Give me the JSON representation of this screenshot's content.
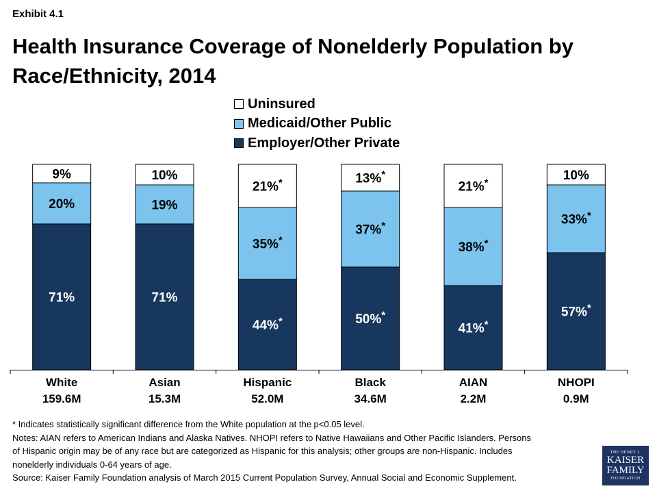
{
  "header": {
    "exhibit": "Exhibit 4.1",
    "title": "Health Insurance Coverage of Nonelderly Population by Race/Ethnicity, 2014"
  },
  "chart_data": {
    "type": "bar",
    "stacked": true,
    "title": "Health Insurance Coverage of Nonelderly Population by Race/Ethnicity, 2014",
    "categories": [
      "White",
      "Asian",
      "Hispanic",
      "Black",
      "AIAN",
      "NHOPI"
    ],
    "category_sublabels": [
      "159.6M",
      "15.3M",
      "52.0M",
      "34.6M",
      "2.2M",
      "0.9M"
    ],
    "ylim": [
      0,
      100
    ],
    "legend_position": "top",
    "series": [
      {
        "name": "Employer/Other Private",
        "color": "#17375e",
        "text_color": "#ffffff",
        "values": [
          71,
          71,
          44,
          50,
          41,
          57
        ],
        "labels": [
          "71%",
          "71%",
          "44%",
          "50%",
          "41%",
          "57%"
        ],
        "significant": [
          false,
          false,
          true,
          true,
          true,
          true
        ]
      },
      {
        "name": "Medicaid/Other Public",
        "color": "#7cc4ee",
        "text_color": "#000000",
        "values": [
          20,
          19,
          35,
          37,
          38,
          33
        ],
        "labels": [
          "20%",
          "19%",
          "35%",
          "37%",
          "38%",
          "33%"
        ],
        "significant": [
          false,
          false,
          true,
          true,
          true,
          true
        ]
      },
      {
        "name": "Uninsured",
        "color": "#ffffff",
        "text_color": "#000000",
        "values": [
          9,
          10,
          21,
          13,
          21,
          10
        ],
        "labels": [
          "9%",
          "10%",
          "21%",
          "13%",
          "21%",
          "10%"
        ],
        "significant": [
          false,
          false,
          true,
          true,
          true,
          false
        ]
      }
    ],
    "significance_marker": "*"
  },
  "legend": {
    "items": [
      "Uninsured",
      "Medicaid/Other Public",
      "Employer/Other Private"
    ],
    "colors": [
      "#ffffff",
      "#7cc4ee",
      "#17375e"
    ]
  },
  "notes": {
    "line1": "* Indicates statistically significant difference from the White population at the p<0.05 level.",
    "line2": "Notes: AIAN refers to American Indians and Alaska Natives. NHOPI refers to Native Hawaiians and Other Pacific Islanders. Persons",
    "line3": "of Hispanic origin may be of any race but are categorized as Hispanic for this analysis; other groups are non-Hispanic. Includes",
    "line4": "nonelderly individuals 0-64 years of age.",
    "line5": "Source: Kaiser Family Foundation analysis of March 2015 Current Population Survey, Annual Social and Economic Supplement."
  },
  "logo": {
    "line1": "THE HENRY J.",
    "line2": "KAISER",
    "line3": "FAMILY",
    "line4": "FOUNDATION"
  }
}
